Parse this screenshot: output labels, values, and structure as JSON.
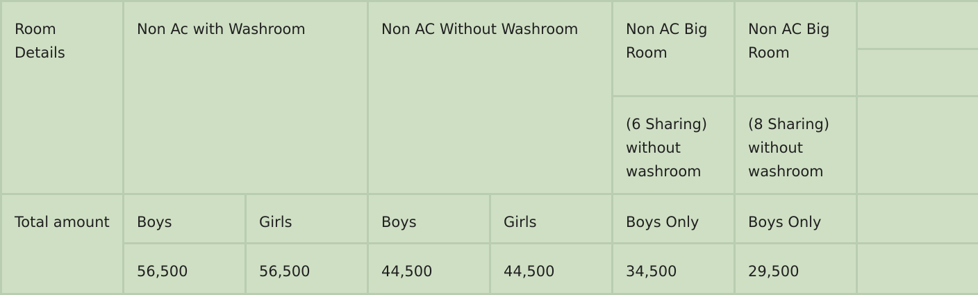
{
  "header": {
    "room_details": "Room Details",
    "col_non_ac_with_washroom": "Non Ac with Washroom",
    "col_non_ac_without_washroom": "Non AC Without Washroom",
    "col_big_room_6": "Non AC Big Room",
    "col_big_room_8": "Non AC Big Room",
    "sharing_6": "(6 Sharing) without washroom",
    "sharing_8": "(8 Sharing) without washroom"
  },
  "total_label": "Total amount",
  "groups": [
    "Boys",
    "Girls",
    "Boys",
    "Girls",
    "Boys Only",
    "Boys Only"
  ],
  "amounts": [
    "56,500",
    "56,500",
    "44,500",
    "44,500",
    "34,500",
    "29,500"
  ]
}
